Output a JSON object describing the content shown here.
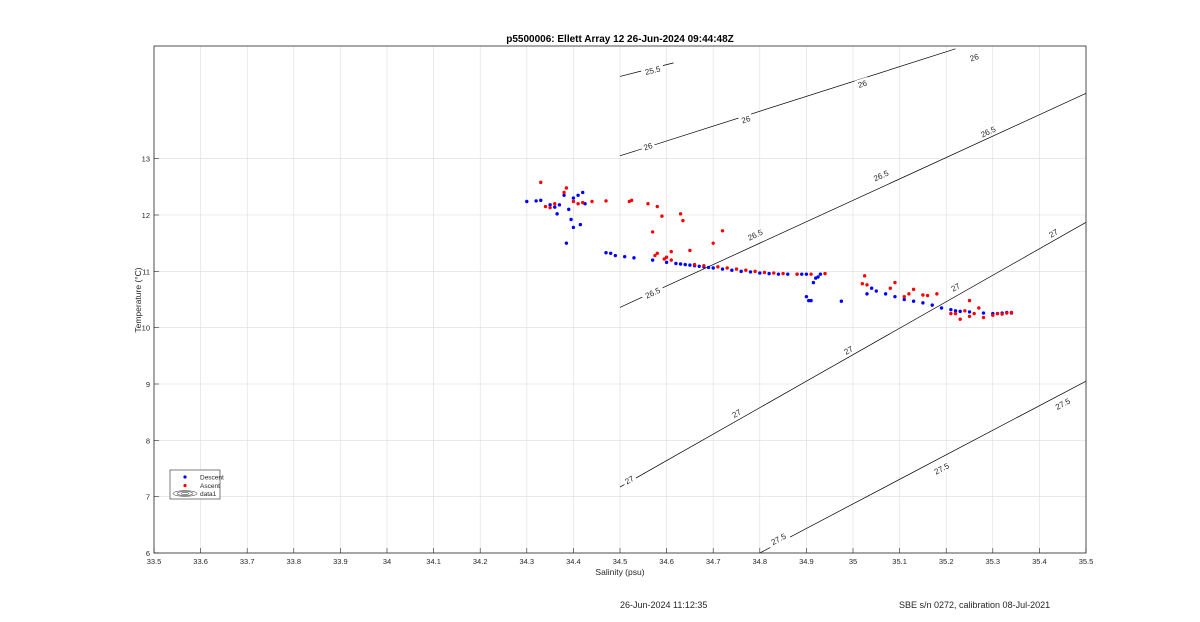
{
  "chart_data": {
    "type": "scatter",
    "title": "p5500006: Ellett Array 12 26-Jun-2024 09:44:48Z",
    "xlabel": "Salinity (psu)",
    "ylabel": "Temperature (°C)",
    "xlim": [
      33.5,
      35.5
    ],
    "ylim": [
      6,
      15
    ],
    "xticks": [
      "33.5",
      "33.6",
      "33.7",
      "33.8",
      "33.9",
      "34",
      "34.1",
      "34.2",
      "34.3",
      "34.4",
      "34.5",
      "34.6",
      "34.7",
      "34.8",
      "34.9",
      "35",
      "35.1",
      "35.2",
      "35.3",
      "35.4",
      "35.5"
    ],
    "yticks": [
      "6",
      "7",
      "8",
      "9",
      "10",
      "11",
      "12",
      "13"
    ],
    "grid": true,
    "legend_placement": "bottom-left",
    "series": [
      {
        "name": "Descent",
        "color": "#0000ff",
        "points": [
          [
            34.3,
            12.24
          ],
          [
            34.32,
            12.25
          ],
          [
            34.33,
            12.26
          ],
          [
            34.35,
            12.18
          ],
          [
            34.36,
            12.14
          ],
          [
            34.365,
            12.02
          ],
          [
            34.37,
            12.18
          ],
          [
            34.38,
            12.35
          ],
          [
            34.385,
            11.5
          ],
          [
            34.39,
            12.1
          ],
          [
            34.395,
            11.92
          ],
          [
            34.4,
            12.3
          ],
          [
            34.4,
            11.78
          ],
          [
            34.41,
            12.35
          ],
          [
            34.415,
            11.83
          ],
          [
            34.42,
            12.4
          ],
          [
            34.425,
            12.2
          ],
          [
            34.47,
            11.33
          ],
          [
            34.48,
            11.32
          ],
          [
            34.49,
            11.28
          ],
          [
            34.51,
            11.26
          ],
          [
            34.53,
            11.24
          ],
          [
            34.57,
            11.2
          ],
          [
            34.6,
            11.16
          ],
          [
            34.62,
            11.14
          ],
          [
            34.63,
            11.13
          ],
          [
            34.64,
            11.12
          ],
          [
            34.65,
            11.11
          ],
          [
            34.66,
            11.1
          ],
          [
            34.67,
            11.09
          ],
          [
            34.68,
            11.08
          ],
          [
            34.69,
            11.07
          ],
          [
            34.7,
            11.06
          ],
          [
            34.72,
            11.04
          ],
          [
            34.74,
            11.02
          ],
          [
            34.76,
            11.0
          ],
          [
            34.78,
            10.99
          ],
          [
            34.8,
            10.97
          ],
          [
            34.82,
            10.96
          ],
          [
            34.84,
            10.95
          ],
          [
            34.86,
            10.95
          ],
          [
            34.88,
            10.95
          ],
          [
            34.89,
            10.95
          ],
          [
            34.9,
            10.95
          ],
          [
            34.9,
            10.55
          ],
          [
            34.905,
            10.48
          ],
          [
            34.91,
            10.48
          ],
          [
            34.915,
            10.8
          ],
          [
            34.92,
            10.88
          ],
          [
            34.925,
            10.9
          ],
          [
            34.93,
            10.95
          ],
          [
            34.975,
            10.47
          ],
          [
            35.03,
            10.6
          ],
          [
            35.04,
            10.7
          ],
          [
            35.05,
            10.65
          ],
          [
            35.07,
            10.6
          ],
          [
            35.09,
            10.55
          ],
          [
            35.11,
            10.5
          ],
          [
            35.13,
            10.47
          ],
          [
            35.15,
            10.44
          ],
          [
            35.17,
            10.4
          ],
          [
            35.19,
            10.35
          ],
          [
            35.21,
            10.32
          ],
          [
            35.22,
            10.3
          ],
          [
            35.23,
            10.29
          ],
          [
            35.25,
            10.28
          ],
          [
            35.28,
            10.26
          ],
          [
            35.3,
            10.25
          ],
          [
            35.31,
            10.25
          ],
          [
            35.32,
            10.26
          ],
          [
            35.33,
            10.27
          ],
          [
            35.34,
            10.26
          ]
        ]
      },
      {
        "name": "Ascent",
        "color": "#ff0000",
        "points": [
          [
            34.33,
            12.58
          ],
          [
            34.34,
            12.15
          ],
          [
            34.35,
            12.13
          ],
          [
            34.36,
            12.2
          ],
          [
            34.38,
            12.4
          ],
          [
            34.385,
            12.48
          ],
          [
            34.4,
            12.24
          ],
          [
            34.41,
            12.2
          ],
          [
            34.42,
            12.22
          ],
          [
            34.44,
            12.24
          ],
          [
            34.47,
            12.25
          ],
          [
            34.52,
            12.24
          ],
          [
            34.525,
            12.26
          ],
          [
            34.56,
            12.2
          ],
          [
            34.57,
            11.7
          ],
          [
            34.575,
            11.28
          ],
          [
            34.58,
            11.32
          ],
          [
            34.58,
            12.15
          ],
          [
            34.59,
            11.98
          ],
          [
            34.595,
            11.22
          ],
          [
            34.6,
            11.25
          ],
          [
            34.61,
            11.35
          ],
          [
            34.61,
            11.2
          ],
          [
            34.63,
            12.02
          ],
          [
            34.635,
            11.9
          ],
          [
            34.65,
            11.37
          ],
          [
            34.66,
            11.12
          ],
          [
            34.68,
            11.1
          ],
          [
            34.7,
            11.5
          ],
          [
            34.71,
            11.08
          ],
          [
            34.72,
            11.72
          ],
          [
            34.73,
            11.06
          ],
          [
            34.75,
            11.04
          ],
          [
            34.77,
            11.02
          ],
          [
            34.79,
            11.0
          ],
          [
            34.81,
            10.98
          ],
          [
            34.83,
            10.97
          ],
          [
            34.85,
            10.96
          ],
          [
            34.88,
            10.95
          ],
          [
            34.91,
            10.95
          ],
          [
            34.94,
            10.96
          ],
          [
            35.02,
            10.78
          ],
          [
            35.025,
            10.92
          ],
          [
            35.03,
            10.76
          ],
          [
            35.08,
            10.7
          ],
          [
            35.09,
            10.8
          ],
          [
            35.11,
            10.55
          ],
          [
            35.12,
            10.6
          ],
          [
            35.13,
            10.68
          ],
          [
            35.15,
            10.58
          ],
          [
            35.16,
            10.57
          ],
          [
            35.18,
            10.6
          ],
          [
            35.21,
            10.25
          ],
          [
            35.22,
            10.25
          ],
          [
            35.23,
            10.15
          ],
          [
            35.24,
            10.3
          ],
          [
            35.25,
            10.48
          ],
          [
            35.25,
            10.2
          ],
          [
            35.26,
            10.25
          ],
          [
            35.27,
            10.35
          ],
          [
            35.28,
            10.18
          ],
          [
            35.3,
            10.22
          ],
          [
            35.31,
            10.25
          ],
          [
            35.32,
            10.24
          ],
          [
            35.33,
            10.26
          ],
          [
            35.34,
            10.27
          ]
        ]
      }
    ],
    "contours": {
      "name": "data1",
      "color": "#000000",
      "lines": [
        {
          "level": "25.5",
          "points": [
            [
              34.5,
              14.46
            ],
            [
              34.615,
              14.7
            ]
          ]
        },
        {
          "level": "26",
          "points": [
            [
              34.5,
              13.05
            ],
            [
              35.22,
              14.95
            ]
          ]
        },
        {
          "level": "26.5",
          "points": [
            [
              34.5,
              10.36
            ],
            [
              35.5,
              14.16
            ]
          ]
        },
        {
          "level": "27",
          "points": [
            [
              34.5,
              7.17
            ],
            [
              35.5,
              11.87
            ]
          ]
        },
        {
          "level": "27.5",
          "points": [
            [
              34.8,
              6.0
            ],
            [
              35.5,
              9.05
            ]
          ]
        }
      ],
      "labels": [
        {
          "text": "25.5",
          "x": 34.57,
          "y": 14.57
        },
        {
          "text": "26",
          "x": 34.56,
          "y": 13.22
        },
        {
          "text": "26",
          "x": 34.77,
          "y": 13.7
        },
        {
          "text": "26",
          "x": 35.02,
          "y": 14.33
        },
        {
          "text": "26",
          "x": 35.26,
          "y": 14.8
        },
        {
          "text": "26.5",
          "x": 34.57,
          "y": 10.62
        },
        {
          "text": "26.5",
          "x": 34.79,
          "y": 11.65
        },
        {
          "text": "26.5",
          "x": 35.06,
          "y": 12.7
        },
        {
          "text": "26.5",
          "x": 35.29,
          "y": 13.48
        },
        {
          "text": "27",
          "x": 34.52,
          "y": 7.3
        },
        {
          "text": "27",
          "x": 34.75,
          "y": 8.48
        },
        {
          "text": "27",
          "x": 34.99,
          "y": 9.6
        },
        {
          "text": "27",
          "x": 35.22,
          "y": 10.72
        },
        {
          "text": "27",
          "x": 35.43,
          "y": 11.68
        },
        {
          "text": "27.5",
          "x": 34.84,
          "y": 6.25
        },
        {
          "text": "27.5",
          "x": 35.19,
          "y": 7.5
        },
        {
          "text": "27.5",
          "x": 35.45,
          "y": 8.65
        }
      ]
    }
  },
  "footer": {
    "timestamp": "26-Jun-2024 11:12:35",
    "calibration": "SBE s/n 0272, calibration 08-Jul-2021"
  }
}
